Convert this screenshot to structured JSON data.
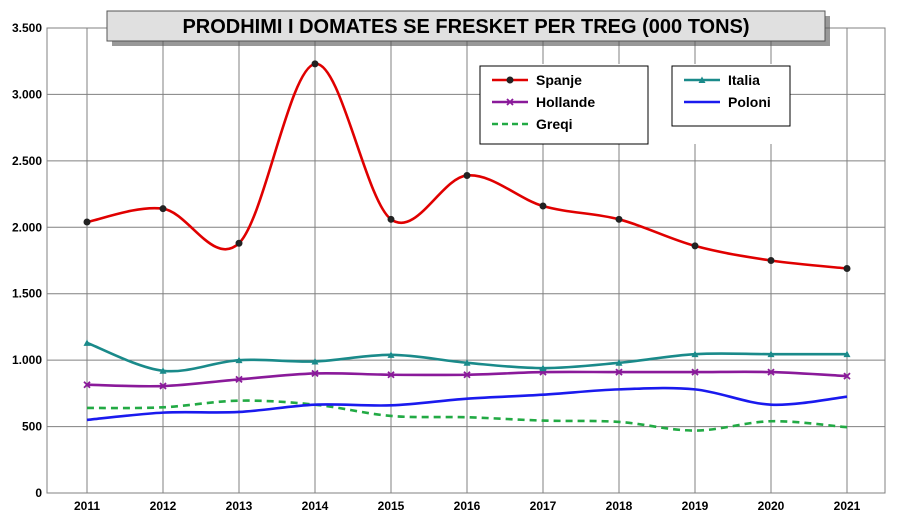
{
  "chart_data": {
    "type": "line",
    "title": "PRODHIMI I DOMATES SE FRESKET PER TREG (000 TONS)",
    "xlabel": "",
    "ylabel": "",
    "x": [
      "2011",
      "2012",
      "2013",
      "2014",
      "2015",
      "2016",
      "2017",
      "2018",
      "2019",
      "2020",
      "2021"
    ],
    "ylim": [
      0,
      3500
    ],
    "yticks": [
      0,
      500,
      1000,
      1500,
      2000,
      2500,
      3000,
      3500
    ],
    "ytick_labels": [
      "0",
      "500",
      "1.000",
      "1.500",
      "2.000",
      "2.500",
      "3.000",
      "3.500"
    ],
    "grid": true,
    "legend_position": "top-right",
    "series": [
      {
        "name": "Spanje",
        "color": "#e00000",
        "dash": false,
        "marker": "circle",
        "values": [
          2040,
          2140,
          1880,
          3230,
          2060,
          2390,
          2160,
          2060,
          1860,
          1750,
          1690
        ]
      },
      {
        "name": "Italia",
        "color": "#1a8a8a",
        "dash": false,
        "marker": "triangle",
        "values": [
          1130,
          920,
          1000,
          990,
          1040,
          980,
          940,
          980,
          1045,
          1045,
          1045
        ]
      },
      {
        "name": "Hollande",
        "color": "#8a1a9a",
        "dash": false,
        "marker": "cross",
        "values": [
          815,
          805,
          855,
          900,
          890,
          890,
          910,
          910,
          910,
          910,
          880
        ]
      },
      {
        "name": "Poloni",
        "color": "#1a1aee",
        "dash": false,
        "marker": "none",
        "values": [
          550,
          605,
          610,
          665,
          660,
          710,
          740,
          780,
          780,
          665,
          725
        ]
      },
      {
        "name": "Greqi",
        "color": "#22aa44",
        "dash": true,
        "marker": "none",
        "values": [
          640,
          645,
          695,
          665,
          580,
          570,
          545,
          535,
          470,
          540,
          495
        ]
      }
    ]
  }
}
